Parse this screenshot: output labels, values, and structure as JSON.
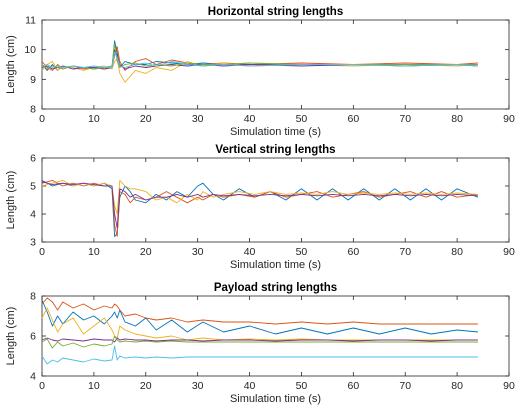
{
  "colors": {
    "series": [
      "#0072BD",
      "#D95319",
      "#EDB120",
      "#7E2F8E",
      "#77AC30",
      "#4DBEEE"
    ],
    "axes": "#262626"
  },
  "chart_data": [
    {
      "type": "line",
      "title": "Horizontal string lengths",
      "xlabel": "Simulation time (s)",
      "ylabel": "Length (cm)",
      "xlim": [
        0,
        90
      ],
      "ylim": [
        8,
        11
      ],
      "xticks": [
        "0",
        "10",
        "20",
        "30",
        "40",
        "50",
        "60",
        "70",
        "80",
        "90"
      ],
      "yticks": [
        "8",
        "9",
        "10",
        "11"
      ],
      "grid": false,
      "series": [
        {
          "x": [
            0,
            1,
            2,
            3,
            4,
            6,
            8,
            10,
            12,
            13.5,
            14,
            14.5,
            15,
            16,
            18,
            20,
            22,
            25,
            28,
            31,
            35,
            40,
            50,
            60,
            70,
            80,
            84
          ],
          "values": [
            9.5,
            9.3,
            9.5,
            9.3,
            9.45,
            9.35,
            9.4,
            9.35,
            9.4,
            9.4,
            10.3,
            9.9,
            9.4,
            9.6,
            9.5,
            9.5,
            9.6,
            9.55,
            9.5,
            9.55,
            9.5,
            9.5,
            9.5,
            9.5,
            9.5,
            9.5,
            9.5
          ]
        },
        {
          "x": [
            0,
            1,
            2,
            3,
            4,
            6,
            8,
            10,
            12,
            13.5,
            14,
            14.5,
            15,
            16,
            18,
            20,
            22,
            25,
            28,
            31,
            35,
            40,
            50,
            60,
            70,
            80,
            84
          ],
          "values": [
            9.6,
            9.4,
            9.3,
            9.5,
            9.35,
            9.45,
            9.35,
            9.4,
            9.35,
            9.4,
            9.8,
            10.1,
            9.6,
            9.3,
            9.6,
            9.7,
            9.5,
            9.65,
            9.55,
            9.5,
            9.55,
            9.5,
            9.55,
            9.5,
            9.55,
            9.5,
            9.55
          ]
        },
        {
          "x": [
            0,
            1,
            2,
            3,
            4,
            6,
            8,
            10,
            12,
            13.5,
            14,
            14.5,
            15,
            16,
            18,
            20,
            22,
            25,
            28,
            31,
            35,
            40,
            50,
            60,
            70,
            80,
            84
          ],
          "values": [
            9.3,
            9.5,
            9.6,
            9.3,
            9.45,
            9.4,
            9.3,
            9.4,
            9.45,
            9.35,
            9.6,
            9.7,
            9.2,
            8.9,
            9.3,
            9.2,
            9.4,
            9.3,
            9.6,
            9.45,
            9.55,
            9.45,
            9.5,
            9.45,
            9.5,
            9.45,
            9.5
          ]
        },
        {
          "x": [
            0,
            1,
            2,
            3,
            4,
            6,
            8,
            10,
            12,
            13.5,
            14,
            14.5,
            15,
            16,
            18,
            20,
            22,
            25,
            28,
            31,
            35,
            40,
            50,
            60,
            70,
            80,
            84
          ],
          "values": [
            9.4,
            9.45,
            9.35,
            9.4,
            9.45,
            9.35,
            9.4,
            9.4,
            9.35,
            9.4,
            10.0,
            9.8,
            9.5,
            9.35,
            9.45,
            9.4,
            9.45,
            9.5,
            9.45,
            9.5,
            9.45,
            9.5,
            9.45,
            9.5,
            9.45,
            9.5,
            9.45
          ]
        },
        {
          "x": [
            0,
            1,
            2,
            3,
            4,
            6,
            8,
            10,
            12,
            13.5,
            14,
            14.5,
            15,
            16,
            18,
            20,
            22,
            25,
            28,
            31,
            35,
            40,
            50,
            60,
            70,
            80,
            84
          ],
          "values": [
            9.5,
            9.35,
            9.45,
            9.4,
            9.35,
            9.45,
            9.4,
            9.35,
            9.4,
            9.45,
            10.2,
            9.6,
            9.4,
            9.5,
            9.55,
            9.45,
            9.5,
            9.45,
            9.55,
            9.5,
            9.5,
            9.55,
            9.5,
            9.5,
            9.5,
            9.5,
            9.5
          ]
        },
        {
          "x": [
            0,
            1,
            2,
            3,
            4,
            6,
            8,
            10,
            12,
            13.5,
            14,
            14.5,
            15,
            16,
            18,
            20,
            22,
            25,
            28,
            31,
            35,
            40,
            50,
            60,
            70,
            80,
            84
          ],
          "values": [
            9.45,
            9.5,
            9.4,
            9.45,
            9.4,
            9.45,
            9.4,
            9.45,
            9.4,
            9.4,
            9.9,
            9.75,
            9.45,
            9.4,
            9.5,
            9.55,
            9.45,
            9.6,
            9.5,
            9.45,
            9.5,
            9.45,
            9.5,
            9.5,
            9.45,
            9.5,
            9.45
          ]
        }
      ]
    },
    {
      "type": "line",
      "title": "Vertical string lengths",
      "xlabel": "Simulation time (s)",
      "ylabel": "Length (cm)",
      "xlim": [
        0,
        90
      ],
      "ylim": [
        3,
        6
      ],
      "xticks": [
        "0",
        "10",
        "20",
        "30",
        "40",
        "50",
        "60",
        "70",
        "80",
        "90"
      ],
      "yticks": [
        "3",
        "4",
        "5",
        "6"
      ],
      "grid": false,
      "series": [
        {
          "x": [
            0,
            2,
            4,
            6,
            8,
            10,
            12,
            13.5,
            14,
            14.5,
            15,
            16,
            17,
            18,
            20,
            22,
            24,
            26,
            28,
            30,
            31,
            33,
            35,
            38,
            41,
            44,
            47,
            50,
            53,
            56,
            59,
            62,
            65,
            68,
            71,
            74,
            77,
            80,
            84
          ],
          "values": [
            5.2,
            5.0,
            5.1,
            5.0,
            5.1,
            5.0,
            5.1,
            4.9,
            3.2,
            3.3,
            4.6,
            5.0,
            4.8,
            4.5,
            4.4,
            4.7,
            4.5,
            4.8,
            4.6,
            5.0,
            5.1,
            4.7,
            4.5,
            4.9,
            4.6,
            4.8,
            4.5,
            4.9,
            4.5,
            4.9,
            4.5,
            4.9,
            4.5,
            4.9,
            4.5,
            4.9,
            4.5,
            4.9,
            4.6
          ]
        },
        {
          "x": [
            0,
            2,
            4,
            6,
            8,
            10,
            12,
            13.5,
            14,
            14.5,
            15,
            16,
            17,
            18,
            20,
            22,
            24,
            26,
            28,
            30,
            31,
            33,
            35,
            38,
            41,
            44,
            47,
            50,
            53,
            56,
            59,
            62,
            65,
            68,
            71,
            74,
            77,
            80,
            84
          ],
          "values": [
            5.1,
            5.2,
            5.0,
            5.1,
            5.0,
            5.1,
            5.0,
            5.0,
            3.6,
            3.2,
            4.8,
            4.7,
            4.4,
            4.6,
            4.5,
            4.6,
            4.8,
            4.6,
            4.4,
            4.6,
            4.5,
            4.7,
            4.6,
            4.7,
            4.6,
            4.8,
            4.6,
            4.7,
            4.8,
            4.6,
            4.7,
            4.8,
            4.6,
            4.7,
            4.8,
            4.6,
            4.8,
            4.6,
            4.7
          ]
        },
        {
          "x": [
            0,
            2,
            4,
            6,
            8,
            10,
            12,
            13.5,
            14,
            14.5,
            15,
            16,
            17,
            18,
            20,
            22,
            24,
            26,
            28,
            30,
            31,
            33,
            35,
            38,
            41,
            44,
            47,
            50,
            53,
            56,
            59,
            62,
            65,
            68,
            71,
            74,
            77,
            80,
            84
          ],
          "values": [
            5.0,
            5.1,
            5.2,
            5.0,
            5.1,
            5.0,
            5.1,
            5.0,
            4.3,
            4.0,
            5.2,
            5.0,
            4.9,
            4.9,
            4.8,
            4.5,
            4.6,
            4.4,
            4.7,
            4.5,
            4.8,
            4.6,
            4.7,
            4.8,
            4.7,
            4.8,
            4.7,
            4.75,
            4.7,
            4.8,
            4.7,
            4.75,
            4.7,
            4.75,
            4.7,
            4.75,
            4.7,
            4.75,
            4.7
          ]
        },
        {
          "x": [
            0,
            2,
            4,
            6,
            8,
            10,
            12,
            13.5,
            14,
            14.5,
            15,
            16,
            17,
            18,
            20,
            22,
            24,
            26,
            28,
            30,
            31,
            33,
            35,
            38,
            41,
            44,
            47,
            50,
            53,
            56,
            59,
            62,
            65,
            68,
            71,
            74,
            77,
            80,
            84
          ],
          "values": [
            5.15,
            5.05,
            5.1,
            5.05,
            5.1,
            5.05,
            5.0,
            5.0,
            4.0,
            3.5,
            4.9,
            4.8,
            4.6,
            4.7,
            4.5,
            4.6,
            4.6,
            4.7,
            4.6,
            4.7,
            4.6,
            4.7,
            4.65,
            4.7,
            4.65,
            4.7,
            4.65,
            4.7,
            4.65,
            4.7,
            4.65,
            4.7,
            4.65,
            4.7,
            4.65,
            4.7,
            4.65,
            4.7,
            4.65
          ]
        }
      ]
    },
    {
      "type": "line",
      "title": "Payload string lengths",
      "xlabel": "Simulation time (s)",
      "ylabel": "Length (cm)",
      "xlim": [
        0,
        90
      ],
      "ylim": [
        4,
        8
      ],
      "xticks": [
        "0",
        "10",
        "20",
        "30",
        "40",
        "50",
        "60",
        "70",
        "80",
        "90"
      ],
      "yticks": [
        "4",
        "6",
        "8"
      ],
      "grid": false,
      "series": [
        {
          "x": [
            0,
            1,
            2,
            3,
            4,
            6,
            8,
            10,
            12,
            13.5,
            14,
            14.5,
            15,
            16,
            18,
            20,
            22,
            25,
            28,
            31,
            35,
            40,
            45,
            50,
            55,
            60,
            65,
            70,
            75,
            80,
            84
          ],
          "values": [
            7.8,
            7.2,
            6.5,
            7.0,
            6.6,
            7.2,
            6.8,
            7.0,
            6.6,
            7.0,
            7.2,
            6.9,
            7.3,
            6.7,
            6.5,
            6.9,
            6.3,
            6.8,
            6.2,
            6.7,
            6.2,
            6.5,
            6.1,
            6.4,
            6.1,
            6.4,
            6.1,
            6.4,
            6.1,
            6.3,
            6.2
          ]
        },
        {
          "x": [
            0,
            1,
            2,
            3,
            4,
            6,
            8,
            10,
            12,
            13.5,
            14,
            14.5,
            15,
            16,
            18,
            20,
            22,
            25,
            28,
            31,
            35,
            40,
            45,
            50,
            55,
            60,
            65,
            70,
            75,
            80,
            84
          ],
          "values": [
            7.6,
            7.9,
            7.7,
            7.3,
            7.7,
            7.4,
            7.6,
            7.3,
            7.5,
            7.4,
            7.6,
            7.5,
            7.3,
            7.0,
            7.1,
            6.9,
            6.8,
            6.9,
            6.7,
            6.8,
            6.7,
            6.7,
            6.6,
            6.7,
            6.6,
            6.7,
            6.6,
            6.6,
            6.6,
            6.6,
            6.6
          ]
        },
        {
          "x": [
            0,
            1,
            2,
            3,
            4,
            6,
            8,
            10,
            12,
            13.5,
            14,
            14.5,
            15,
            16,
            18,
            20,
            22,
            25,
            28,
            31,
            35,
            40,
            45,
            50,
            55,
            60,
            65,
            70,
            75,
            80,
            84
          ],
          "values": [
            6.9,
            7.4,
            6.8,
            6.2,
            6.6,
            6.9,
            6.1,
            6.5,
            6.9,
            6.3,
            6.0,
            5.9,
            6.5,
            6.3,
            6.1,
            6.0,
            5.9,
            6.0,
            5.8,
            5.9,
            5.8,
            5.85,
            5.8,
            5.85,
            5.8,
            5.8,
            5.8,
            5.8,
            5.8,
            5.8,
            5.8
          ]
        },
        {
          "x": [
            0,
            1,
            2,
            3,
            4,
            6,
            8,
            10,
            12,
            13.5,
            14,
            14.5,
            15,
            16,
            18,
            20,
            22,
            25,
            28,
            31,
            35,
            40,
            45,
            50,
            55,
            60,
            65,
            70,
            75,
            80,
            84
          ],
          "values": [
            5.8,
            5.9,
            5.8,
            5.75,
            5.85,
            5.8,
            5.75,
            5.85,
            5.8,
            5.8,
            5.7,
            5.9,
            5.8,
            5.85,
            5.8,
            5.8,
            5.75,
            5.8,
            5.8,
            5.75,
            5.8,
            5.8,
            5.75,
            5.8,
            5.8,
            5.75,
            5.8,
            5.8,
            5.75,
            5.8,
            5.8
          ]
        },
        {
          "x": [
            0,
            1,
            2,
            3,
            4,
            6,
            8,
            10,
            12,
            13.5,
            14,
            14.5,
            15,
            16,
            18,
            20,
            22,
            25,
            28,
            31,
            35,
            40,
            45,
            50,
            55,
            60,
            65,
            70,
            75,
            80,
            84
          ],
          "values": [
            5.7,
            5.85,
            5.4,
            5.7,
            5.5,
            5.65,
            5.45,
            5.6,
            5.5,
            5.6,
            6.0,
            5.8,
            5.7,
            5.75,
            5.7,
            5.75,
            5.7,
            5.75,
            5.7,
            5.7,
            5.7,
            5.7,
            5.7,
            5.7,
            5.7,
            5.7,
            5.7,
            5.7,
            5.7,
            5.7,
            5.7
          ]
        },
        {
          "x": [
            0,
            1,
            2,
            3,
            4,
            6,
            8,
            10,
            12,
            13.5,
            14,
            14.5,
            15,
            16,
            18,
            20,
            22,
            25,
            28,
            31,
            35,
            40,
            45,
            50,
            55,
            60,
            65,
            70,
            75,
            80,
            84
          ],
          "values": [
            5.0,
            4.6,
            4.8,
            4.7,
            4.9,
            4.8,
            4.7,
            4.85,
            4.75,
            4.8,
            5.5,
            4.8,
            5.0,
            4.9,
            4.95,
            4.9,
            4.95,
            4.9,
            4.95,
            4.95,
            4.95,
            4.95,
            4.95,
            4.95,
            4.95,
            4.95,
            4.95,
            4.95,
            4.95,
            4.95,
            4.95
          ]
        }
      ]
    }
  ]
}
